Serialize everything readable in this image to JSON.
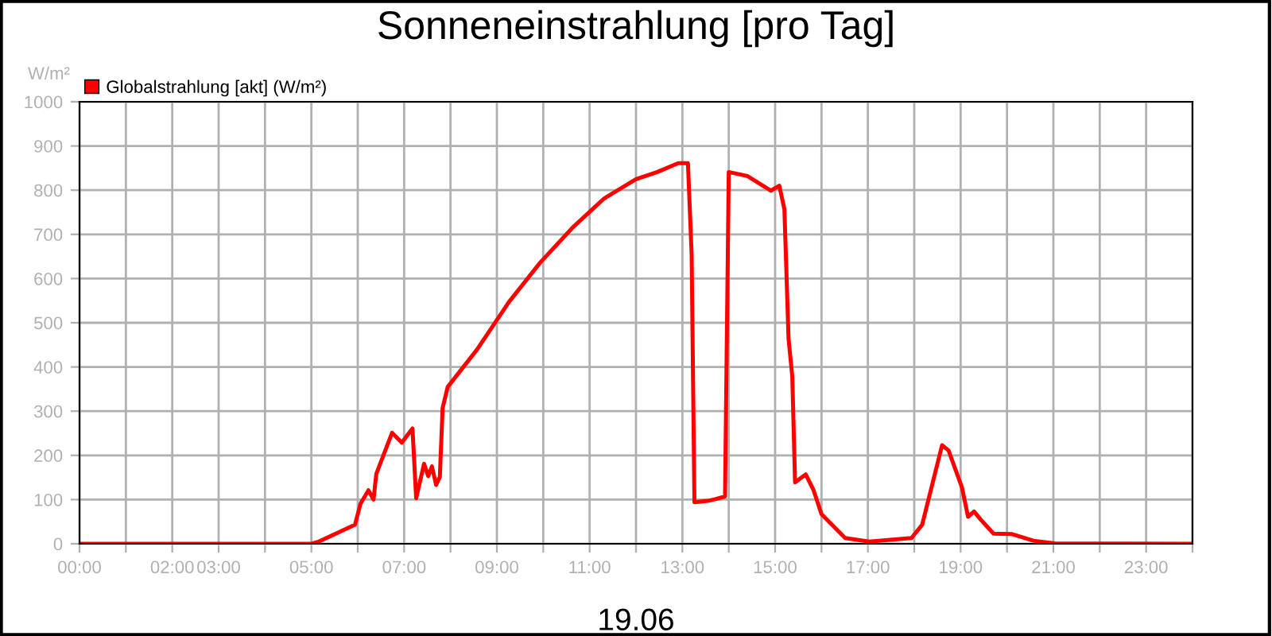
{
  "chart_data": {
    "type": "line",
    "title": "Sonneneinstrahlung [pro Tag]",
    "xlabel": "19.06",
    "ylabel": "W/m²",
    "xlim": [
      0,
      24
    ],
    "ylim": [
      0,
      1000
    ],
    "xticks": [
      {
        "value": 0,
        "label": "00:00"
      },
      {
        "value": 1,
        "label": null
      },
      {
        "value": 2,
        "label": "02:00"
      },
      {
        "value": 3,
        "label": "03:00"
      },
      {
        "value": 4,
        "label": null
      },
      {
        "value": 5,
        "label": "05:00"
      },
      {
        "value": 6,
        "label": null
      },
      {
        "value": 7,
        "label": "07:00"
      },
      {
        "value": 8,
        "label": null
      },
      {
        "value": 9,
        "label": "09:00"
      },
      {
        "value": 10,
        "label": null
      },
      {
        "value": 11,
        "label": "11:00"
      },
      {
        "value": 12,
        "label": null
      },
      {
        "value": 13,
        "label": "13:00"
      },
      {
        "value": 14,
        "label": null
      },
      {
        "value": 15,
        "label": "15:00"
      },
      {
        "value": 16,
        "label": null
      },
      {
        "value": 17,
        "label": "17:00"
      },
      {
        "value": 18,
        "label": null
      },
      {
        "value": 19,
        "label": "19:00"
      },
      {
        "value": 20,
        "label": null
      },
      {
        "value": 21,
        "label": "21:00"
      },
      {
        "value": 22,
        "label": null
      },
      {
        "value": 23,
        "label": "23:00"
      },
      {
        "value": 24,
        "label": null
      }
    ],
    "yticks": [
      0,
      100,
      200,
      300,
      400,
      500,
      600,
      700,
      800,
      900,
      1000
    ],
    "grid": true,
    "legend": "top left",
    "marker": "none",
    "line_style": "solid",
    "series": [
      {
        "name": "Globalstrahlung [akt] (W/m²)",
        "color": "#ff0000",
        "x": [
          0,
          5.0,
          5.14,
          5.94,
          6.06,
          6.23,
          6.34,
          6.4,
          6.74,
          6.95,
          7.18,
          7.26,
          7.43,
          7.52,
          7.6,
          7.69,
          7.77,
          7.83,
          7.94,
          8.57,
          9.26,
          9.94,
          10.63,
          11.31,
          12.0,
          12.46,
          12.91,
          13.12,
          13.2,
          13.26,
          13.54,
          13.71,
          13.92,
          14.0,
          14.4,
          14.91,
          15.09,
          15.2,
          15.29,
          15.37,
          15.43,
          15.66,
          15.83,
          16.0,
          16.51,
          17.03,
          17.94,
          18.17,
          18.4,
          18.6,
          18.74,
          19.03,
          19.16,
          19.29,
          19.43,
          19.71,
          20.11,
          20.57,
          21.03,
          24
        ],
        "values": [
          0,
          0,
          4,
          43,
          91,
          121,
          100,
          158,
          251,
          229,
          261,
          103,
          181,
          153,
          175,
          133,
          151,
          307,
          355,
          439,
          547,
          637,
          715,
          781,
          825,
          841,
          861,
          861,
          655,
          94,
          97,
          101,
          107,
          841,
          832,
          799,
          810,
          757,
          463,
          379,
          139,
          157,
          121,
          67,
          13,
          5,
          13,
          43,
          139,
          223,
          211,
          127,
          61,
          73,
          55,
          23,
          22,
          7,
          1,
          0
        ]
      }
    ]
  }
}
